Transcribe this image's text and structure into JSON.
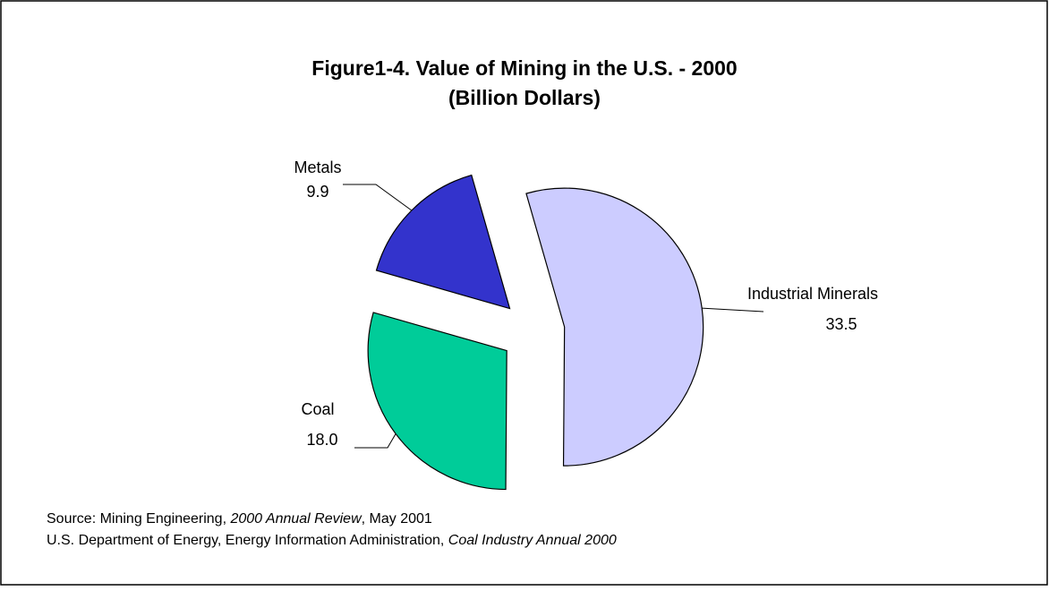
{
  "chart_data": {
    "type": "pie",
    "title": [
      "Figure1-4.  Value of Mining in the U.S. - 2000",
      "(Billion Dollars)"
    ],
    "categories": [
      "Industrial Minerals",
      "Coal",
      "Metals"
    ],
    "values": [
      33.5,
      18.0,
      9.9
    ],
    "value_labels": [
      "33.5",
      "18.0",
      "9.9"
    ],
    "colors": [
      "#ccccff",
      "#00cc99",
      "#3333cc"
    ],
    "exploded": true,
    "source": [
      [
        {
          "text": "Source:  Mining Engineering, ",
          "italic": false
        },
        {
          "text": "2000 Annual Review",
          "italic": true
        },
        {
          "text": ", May 2001",
          "italic": false
        }
      ],
      [
        {
          "text": "U.S. Department of Energy, Energy Information Administration, ",
          "italic": false
        },
        {
          "text": "Coal Industry Annual 2000",
          "italic": true
        }
      ]
    ]
  }
}
